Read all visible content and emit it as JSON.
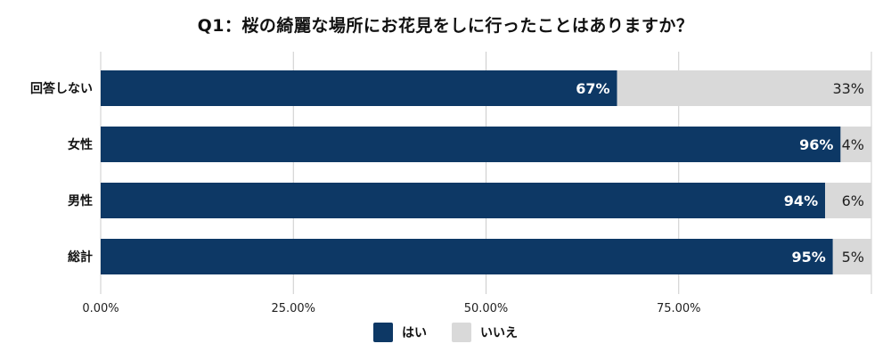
{
  "chart_data": {
    "type": "bar",
    "orientation": "horizontal",
    "stacked": true,
    "title": "Q1：桜の綺麗な場所にお花見をしに行ったことはありますか？",
    "categories": [
      "回答しない",
      "女性",
      "男性",
      "総計"
    ],
    "series": [
      {
        "name": "はい",
        "values": [
          67,
          96,
          94,
          95
        ],
        "color": "#0d3865",
        "label_color": "#ffffff"
      },
      {
        "name": "いいえ",
        "values": [
          33,
          4,
          6,
          5
        ],
        "color": "#d9d9d9",
        "label_color": "#222222"
      }
    ],
    "value_labels": [
      [
        "67%",
        "96%",
        "94%",
        "95%"
      ],
      [
        "33%",
        "4%",
        "6%",
        "5%"
      ]
    ],
    "x_ticks": [
      0,
      25,
      50,
      75
    ],
    "x_tick_labels": [
      "0.00%",
      "25.00%",
      "50.00%",
      "75.00%"
    ],
    "xlim": [
      0,
      100
    ],
    "grid": true,
    "legend_position": "bottom"
  }
}
